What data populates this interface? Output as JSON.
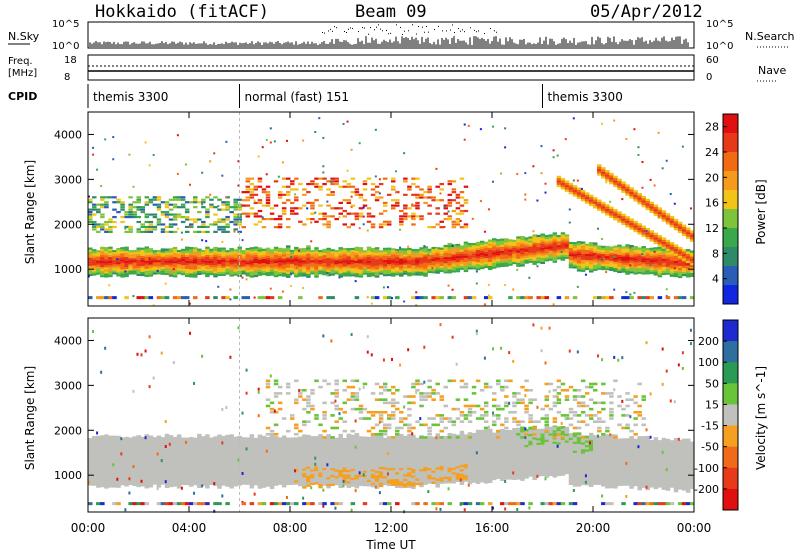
{
  "header": {
    "station": "Hokkaido (fitACF)",
    "beam": "Beam 09",
    "date": "05/Apr/2012"
  },
  "sky_panel": {
    "left_label": "N.Sky",
    "right_label": "N.Search",
    "ytick_top": "10^5",
    "ytick_bottom": "10^0"
  },
  "freq_panel": {
    "left_label_1": "Freq.",
    "left_label_2": "[MHz]",
    "right_label": "Nave",
    "ytick_top": "18",
    "ytick_bottom": "8",
    "rtick_top": "60",
    "rtick_bottom": "0"
  },
  "cpid": {
    "label": "CPID",
    "segments": [
      {
        "name": "themis 3300",
        "start_hour": 0,
        "end_hour": 6
      },
      {
        "name": "normal (fast) 151",
        "start_hour": 6,
        "end_hour": 18
      },
      {
        "name": "themis 3300",
        "start_hour": 18,
        "end_hour": 24
      }
    ]
  },
  "chart_data": [
    {
      "type": "heatmap",
      "title": "",
      "xlabel": "Time UT",
      "ylabel": "Slant Range [km]",
      "xlim": [
        0,
        24
      ],
      "ylim": [
        180,
        4500
      ],
      "xticks": [
        "00:00",
        "04:00",
        "08:00",
        "12:00",
        "16:00",
        "20:00",
        "00:00"
      ],
      "yticks": [
        1000,
        2000,
        3000,
        4000
      ],
      "colorbar": {
        "label": "Power [dB]",
        "ticks": [
          4,
          8,
          12,
          16,
          20,
          24,
          28
        ],
        "range": [
          0,
          30
        ],
        "colors": [
          "#1026e0",
          "#2a5db5",
          "#2f8a6a",
          "#3aa84a",
          "#7ec43a",
          "#f2c418",
          "#f59a1a",
          "#f26a14",
          "#e8381a",
          "#e01010"
        ]
      },
      "features": [
        {
          "name": "main scatter band",
          "from_hour": 0,
          "to_hour": 24,
          "range_km_low": 800,
          "range_km_high": 1600,
          "level_db": 26
        },
        {
          "name": "upper band",
          "from_hour": 0,
          "to_hour": 6,
          "range_km_low": 1900,
          "range_km_high": 2600,
          "level_db": 10
        },
        {
          "name": "descending streaks",
          "from_hour": 18.5,
          "to_hour": 24,
          "range_km_low": 1200,
          "range_km_high": 3200,
          "level_db": 24
        }
      ]
    },
    {
      "type": "heatmap",
      "title": "",
      "xlabel": "Time UT",
      "ylabel": "Slant Range [km]",
      "xlim": [
        0,
        24
      ],
      "ylim": [
        180,
        4500
      ],
      "xticks": [
        "00:00",
        "04:00",
        "08:00",
        "12:00",
        "16:00",
        "20:00",
        "00:00"
      ],
      "yticks": [
        1000,
        2000,
        3000,
        4000
      ],
      "colorbar": {
        "label": "Velocity [m s^-1]",
        "ticks": [
          200,
          100,
          50,
          15,
          -15,
          -50,
          -100,
          -200
        ],
        "colors": [
          "#1e2ad0",
          "#2f6fa0",
          "#2a9a55",
          "#69c43a",
          "#c0c0bc",
          "#f5a020",
          "#f06a18",
          "#e83a1a",
          "#e01010"
        ]
      },
      "features": [
        {
          "name": "ground scatter",
          "from_hour": 0,
          "to_hour": 24,
          "range_km_low": 700,
          "range_km_high": 2100,
          "velocity": 0
        },
        {
          "name": "negative velocity patches",
          "from_hour": 8,
          "to_hour": 15,
          "range_km_low": 900,
          "range_km_high": 1400,
          "velocity": -40
        },
        {
          "name": "positive velocity patches",
          "from_hour": 9,
          "to_hour": 21,
          "range_km_low": 1700,
          "range_km_high": 3100,
          "velocity": 40
        }
      ]
    }
  ]
}
